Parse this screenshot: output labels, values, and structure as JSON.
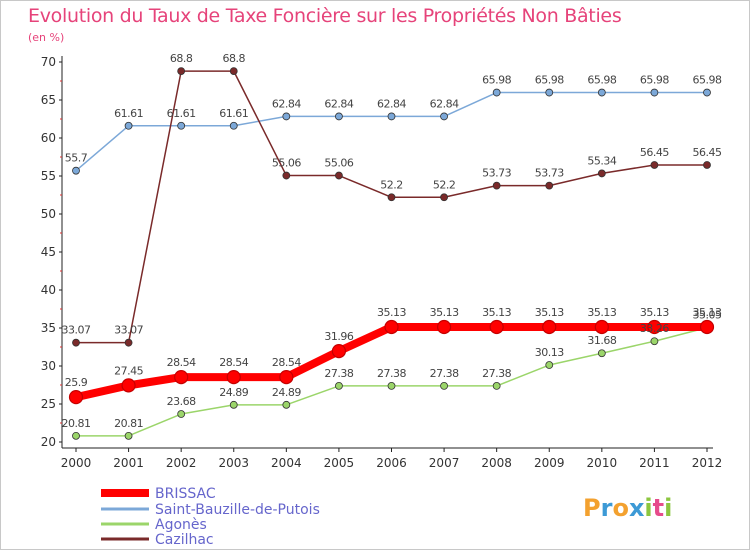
{
  "chart_data": {
    "type": "line",
    "title": "Evolution du Taux de Taxe Foncière sur les Propriétés Non Bâties",
    "ylabel": "(en %)",
    "xlabel": "",
    "ylim": [
      20,
      70
    ],
    "yticks": [
      20,
      25,
      30,
      35,
      40,
      45,
      50,
      55,
      60,
      65,
      70
    ],
    "categories": [
      "2000",
      "2001",
      "2002",
      "2003",
      "2004",
      "2005",
      "2006",
      "2007",
      "2008",
      "2009",
      "2010",
      "2011",
      "2012"
    ],
    "grid": false,
    "legend_position": "bottom-left",
    "series": [
      {
        "name": "BRISSAC",
        "color": "#ff0000",
        "values": [
          25.9,
          27.45,
          28.54,
          28.54,
          28.54,
          31.96,
          35.13,
          35.13,
          35.13,
          35.13,
          35.13,
          35.13,
          35.13
        ],
        "labels": [
          "25.9",
          "27.45",
          "28.54",
          "28.54",
          "28.54",
          "31.96",
          "35.13",
          "35.13",
          "35.13",
          "35.13",
          "35.13",
          "35.13",
          "35.13"
        ]
      },
      {
        "name": "Saint-Bauzille-de-Putois",
        "color": "#7ca8d8",
        "values": [
          55.7,
          61.61,
          61.61,
          61.61,
          62.84,
          62.84,
          62.84,
          62.84,
          65.98,
          65.98,
          65.98,
          65.98,
          65.98
        ],
        "labels": [
          "55.7",
          "61.61",
          "61.61",
          "61.61",
          "62.84",
          "62.84",
          "62.84",
          "62.84",
          "65.98",
          "65.98",
          "65.98",
          "65.98",
          "65.98"
        ]
      },
      {
        "name": "Agonès",
        "color": "#9bd56a",
        "values": [
          20.81,
          20.81,
          23.68,
          24.89,
          24.89,
          27.38,
          27.38,
          27.38,
          27.38,
          30.13,
          31.68,
          33.26,
          35.05
        ],
        "labels": [
          "20.81",
          "20.81",
          "23.68",
          "24.89",
          "24.89",
          "27.38",
          "27.38",
          "27.38",
          "27.38",
          "30.13",
          "31.68",
          "33.26",
          "35.05"
        ]
      },
      {
        "name": "Cazilhac",
        "color": "#7a2a2a",
        "values": [
          33.07,
          33.07,
          68.8,
          68.8,
          55.06,
          55.06,
          52.2,
          52.2,
          53.73,
          53.73,
          55.34,
          56.45,
          56.45
        ],
        "labels": [
          "33.07",
          "33.07",
          "68.8",
          "68.8",
          "55.06",
          "55.06",
          "52.2",
          "52.2",
          "53.73",
          "53.73",
          "55.34",
          "56.45",
          "56.45"
        ]
      }
    ]
  },
  "brand": {
    "text": "Proxiti",
    "letters": [
      "P",
      "r",
      "o",
      "x",
      "i",
      "t",
      "i"
    ],
    "colors": [
      "#f3a12f",
      "#3d9ad6",
      "#f3a12f",
      "#3d9ad6",
      "#8cc63f",
      "#e64b8b",
      "#8cc63f"
    ]
  },
  "colors": {
    "title": "#e6437a",
    "legend_text": "#6666cc"
  }
}
